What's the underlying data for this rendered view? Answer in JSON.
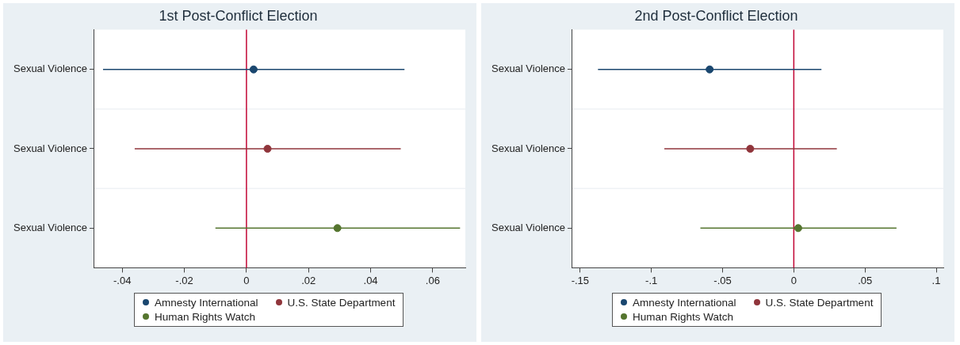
{
  "chart_data": [
    {
      "type": "scatter",
      "title": "1st Post-Conflict Election",
      "orientation": "horizontal",
      "categories": [
        "Sexual Violence",
        "Sexual Violence",
        "Sexual Violence"
      ],
      "series": [
        {
          "name": "Amnesty International",
          "color": "#1a476f",
          "values": [
            0.0023,
            null,
            null
          ],
          "errors": [
            [
              -0.0462,
              0.0509
            ],
            null,
            null
          ]
        },
        {
          "name": "U.S. State Department",
          "color": "#90353b",
          "values": [
            null,
            0.0068,
            null
          ],
          "errors": [
            null,
            [
              -0.036,
              0.0497
            ],
            null
          ]
        },
        {
          "name": "Human Rights Watch",
          "color": "#55752f",
          "values": [
            null,
            null,
            0.0293
          ],
          "errors": [
            null,
            null,
            [
              -0.01,
              0.0688
            ]
          ]
        }
      ],
      "xlim": [
        -0.049,
        0.0705
      ],
      "xticks": [
        {
          "value": -0.04,
          "label": "-.04"
        },
        {
          "value": -0.02,
          "label": "-.02"
        },
        0,
        {
          "value": 0.02,
          "label": ".02"
        },
        {
          "value": 0.04,
          "label": ".04"
        },
        {
          "value": 0.06,
          "label": ".06"
        }
      ],
      "ref_lines": [
        {
          "axis": "x",
          "value": 0,
          "color": "#c10534"
        }
      ],
      "grid": "y",
      "legend": "bottom",
      "marker": "circle"
    },
    {
      "type": "scatter",
      "title": "2nd Post-Conflict Election",
      "orientation": "horizontal",
      "categories": [
        "Sexual Violence",
        "Sexual Violence",
        "Sexual Violence"
      ],
      "series": [
        {
          "name": "Amnesty International",
          "color": "#1a476f",
          "values": [
            -0.0591,
            null,
            null
          ],
          "errors": [
            [
              -0.1375,
              0.0194
            ],
            null,
            null
          ]
        },
        {
          "name": "U.S. State Department",
          "color": "#90353b",
          "values": [
            null,
            -0.0306,
            null
          ],
          "errors": [
            null,
            [
              -0.0909,
              0.0302
            ],
            null
          ]
        },
        {
          "name": "Human Rights Watch",
          "color": "#55752f",
          "values": [
            null,
            null,
            0.0031
          ],
          "errors": [
            null,
            null,
            [
              -0.0656,
              0.0721
            ]
          ]
        }
      ],
      "xlim": [
        -0.1555,
        0.105
      ],
      "xticks": [
        {
          "value": -0.15,
          "label": "-.15"
        },
        {
          "value": -0.1,
          "label": "-.1"
        },
        {
          "value": -0.05,
          "label": "-.05"
        },
        0,
        {
          "value": 0.05,
          "label": ".05"
        },
        {
          "value": 0.1,
          "label": ".1"
        }
      ],
      "ref_lines": [
        {
          "axis": "x",
          "value": 0,
          "color": "#c10534"
        }
      ],
      "grid": "y",
      "legend": "bottom",
      "marker": "circle"
    }
  ]
}
